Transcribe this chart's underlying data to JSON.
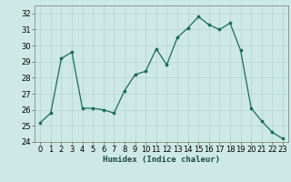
{
  "x": [
    0,
    1,
    2,
    3,
    4,
    5,
    6,
    7,
    8,
    9,
    10,
    11,
    12,
    13,
    14,
    15,
    16,
    17,
    18,
    19,
    20,
    21,
    22,
    23
  ],
  "y": [
    25.2,
    25.8,
    29.2,
    29.6,
    26.1,
    26.1,
    26.0,
    25.8,
    27.2,
    28.2,
    28.4,
    29.8,
    28.8,
    30.5,
    31.1,
    31.8,
    31.3,
    31.0,
    31.4,
    29.7,
    26.1,
    25.3,
    24.6,
    24.2
  ],
  "xlabel": "Humidex (Indice chaleur)",
  "ylim": [
    24,
    32.5
  ],
  "yticks": [
    24,
    25,
    26,
    27,
    28,
    29,
    30,
    31,
    32
  ],
  "xticks": [
    0,
    1,
    2,
    3,
    4,
    5,
    6,
    7,
    8,
    9,
    10,
    11,
    12,
    13,
    14,
    15,
    16,
    17,
    18,
    19,
    20,
    21,
    22,
    23
  ],
  "line_color": "#1a6b5a",
  "marker_color": "#1a6b5a",
  "bg_color": "#cee9e5",
  "grid_color": "#b0d4cf",
  "label_fontsize": 6.5,
  "tick_fontsize": 6.0
}
